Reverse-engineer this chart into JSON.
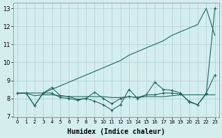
{
  "x": [
    0,
    1,
    2,
    3,
    4,
    5,
    6,
    7,
    8,
    9,
    10,
    11,
    12,
    13,
    14,
    15,
    16,
    17,
    18,
    19,
    20,
    21,
    22,
    23
  ],
  "line1": [
    8.3,
    8.3,
    8.15,
    8.2,
    8.2,
    8.15,
    8.1,
    8.1,
    8.1,
    8.1,
    8.1,
    8.05,
    8.05,
    8.1,
    8.05,
    8.1,
    8.1,
    8.1,
    8.15,
    8.2,
    8.2,
    8.2,
    8.2,
    8.2
  ],
  "line2": [
    8.3,
    8.3,
    7.6,
    8.3,
    8.3,
    8.05,
    8.0,
    7.9,
    8.0,
    7.85,
    7.65,
    7.35,
    7.65,
    8.5,
    8.0,
    8.2,
    8.9,
    8.5,
    8.45,
    8.3,
    7.8,
    7.65,
    8.3,
    9.3
  ],
  "line3": [
    8.3,
    8.3,
    7.6,
    8.3,
    8.6,
    8.15,
    8.1,
    7.95,
    8.0,
    8.35,
    8.0,
    7.7,
    8.0,
    8.1,
    8.05,
    8.2,
    8.2,
    8.3,
    8.3,
    8.25,
    7.85,
    7.65,
    8.25,
    13.0
  ],
  "line4": [
    8.3,
    8.3,
    8.3,
    8.3,
    8.5,
    8.7,
    8.9,
    9.1,
    9.3,
    9.5,
    9.7,
    9.9,
    10.1,
    10.4,
    10.6,
    10.8,
    11.0,
    11.2,
    11.5,
    11.7,
    11.9,
    12.1,
    13.0,
    11.5
  ],
  "bg_color": "#d4eeee",
  "line_color": "#1a6b5a",
  "grid_color": "#b0cece",
  "xlabel": "Humidex (Indice chaleur)",
  "ylabel_ticks": [
    7,
    8,
    9,
    10,
    11,
    12,
    13
  ],
  "xlim": [
    -0.5,
    23.5
  ],
  "ylim": [
    6.95,
    13.3
  ]
}
